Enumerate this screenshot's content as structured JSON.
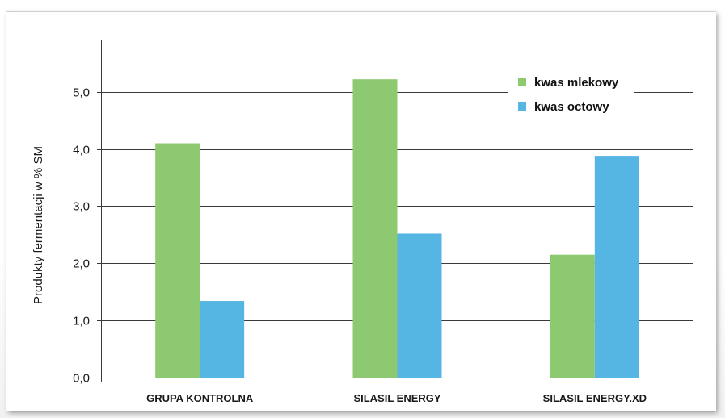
{
  "chart_data": {
    "type": "bar",
    "categories": [
      "GRUPA KONTROLNA",
      "SILASIL ENERGY",
      "SILASIL ENERGY.XD"
    ],
    "series": [
      {
        "name": "kwas mlekowy",
        "color": "#8dc971",
        "values": [
          4.1,
          5.22,
          2.15
        ]
      },
      {
        "name": "kwas octowy",
        "color": "#55b5e3",
        "values": [
          1.34,
          2.52,
          3.88
        ]
      }
    ],
    "title": "",
    "xlabel": "",
    "ylabel": "Produkty fermentacji w % SM",
    "ylim": [
      0,
      5.9
    ],
    "yticks": [
      0,
      1,
      2,
      3,
      4,
      5
    ],
    "ytick_labels": [
      "0,0",
      "1,0",
      "2,0",
      "3,0",
      "4,0",
      "5,0"
    ],
    "grid": true,
    "legend_position": "top-right"
  }
}
